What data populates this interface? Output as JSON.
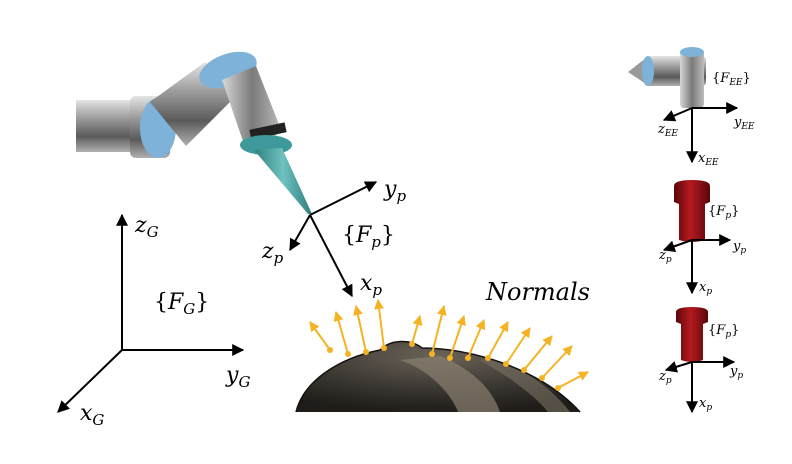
{
  "global_frame": {
    "label_base": "F",
    "label_sub": "G",
    "z_base": "z",
    "z_sub": "G",
    "y_base": "y",
    "y_sub": "G",
    "x_base": "x",
    "x_sub": "G"
  },
  "tool_frame": {
    "label_base": "F",
    "label_sub": "p",
    "x_base": "x",
    "x_sub": "p",
    "y_base": "y",
    "y_sub": "p",
    "z_base": "z",
    "z_sub": "p"
  },
  "normals_label": "Normals",
  "end_effector_frame": {
    "label_base": "F",
    "label_sub": "EE",
    "x_base": "x",
    "x_sub": "EE",
    "y_base": "y",
    "y_sub": "EE",
    "z_base": "z",
    "z_sub": "EE"
  },
  "tool_frame_2": {
    "label_base": "F",
    "label_sub": "p",
    "x_base": "x",
    "x_sub": "p",
    "y_base": "y",
    "y_sub": "p",
    "z_base": "z",
    "z_sub": "p"
  },
  "tool_frame_3": {
    "label_base": "F",
    "label_sub": "p",
    "x_base": "x",
    "x_sub": "p",
    "y_base": "y",
    "y_sub": "p",
    "z_base": "z",
    "z_sub": "p"
  },
  "colors": {
    "normal_arrow": "#f5b324",
    "robot_joint_blue": "#7fb2d8",
    "tool_teal": "#3e9a9a",
    "red_tool": "#8b0f14"
  }
}
